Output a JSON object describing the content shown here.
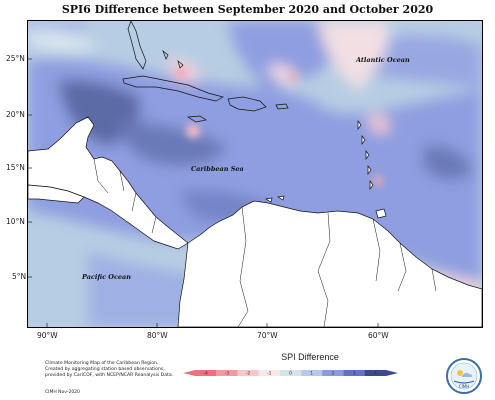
{
  "title": "SPI6 Difference between September 2020 and October 2020",
  "axes": {
    "lat_labels": [
      "25°N",
      "20°N",
      "15°N",
      "10°N",
      "5°N"
    ],
    "lon_labels": [
      "90°W",
      "80°W",
      "70°W",
      "60°W"
    ]
  },
  "places": {
    "atlantic": "Atlantic Ocean",
    "caribbean": "Caribbean Sea",
    "pacific": "Pacific Ocean"
  },
  "legend": {
    "title": "SPI Difference",
    "ticks": [
      "-4",
      "-3",
      "-2",
      "-1",
      "0",
      "1",
      "2",
      "3",
      "4"
    ],
    "colors": [
      "#e8737f",
      "#f29aa3",
      "#f9c6cb",
      "#fbe6e8",
      "#d6e4ea",
      "#b9c6f0",
      "#8a9be3",
      "#6272c4",
      "#3b4a8e"
    ]
  },
  "credits": {
    "line1": "Climate Monitoring Map of the Caribbean Region.",
    "line2": "Created by aggregating station based observations,",
    "line3": "provided by CariCOF, with NCEP/NCAR Reanalysis Data.",
    "date": "CIMH Nov-2020"
  },
  "logo_text": "CIMH",
  "colors": {
    "pale_blue": "#b7cde3",
    "mid_blue": "#8e9ee0",
    "dark_blue": "#5b6aa6",
    "pink": "#f8d2d8",
    "red": "#f0a8b1",
    "land": "#ffffff"
  }
}
